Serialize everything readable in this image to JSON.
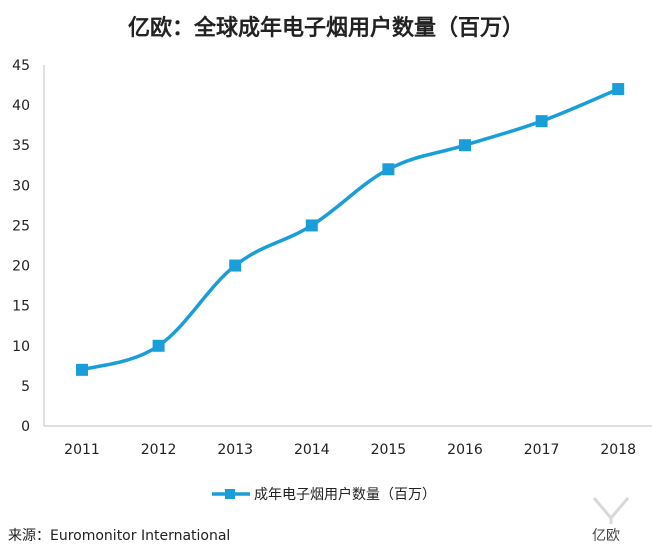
{
  "chart_data": {
    "type": "line",
    "title": "亿欧：全球成年电子烟用户数量（百万）",
    "categories": [
      "2011",
      "2012",
      "2013",
      "2014",
      "2015",
      "2016",
      "2017",
      "2018"
    ],
    "series": [
      {
        "name": "成年电子烟用户数量（百万）",
        "values": [
          7,
          10,
          20,
          25,
          32,
          35,
          38,
          42
        ]
      }
    ],
    "ylim": [
      0,
      45
    ],
    "yticks": [
      0,
      5,
      10,
      15,
      20,
      25,
      30,
      35,
      40,
      45
    ],
    "grid": false,
    "legend": "bottom",
    "line_color": "#1a9ed9",
    "marker_color": "#1a9ed9",
    "axis_color": "#bfbfbf"
  },
  "source": "来源：Euromonitor International",
  "watermark": "亿欧"
}
